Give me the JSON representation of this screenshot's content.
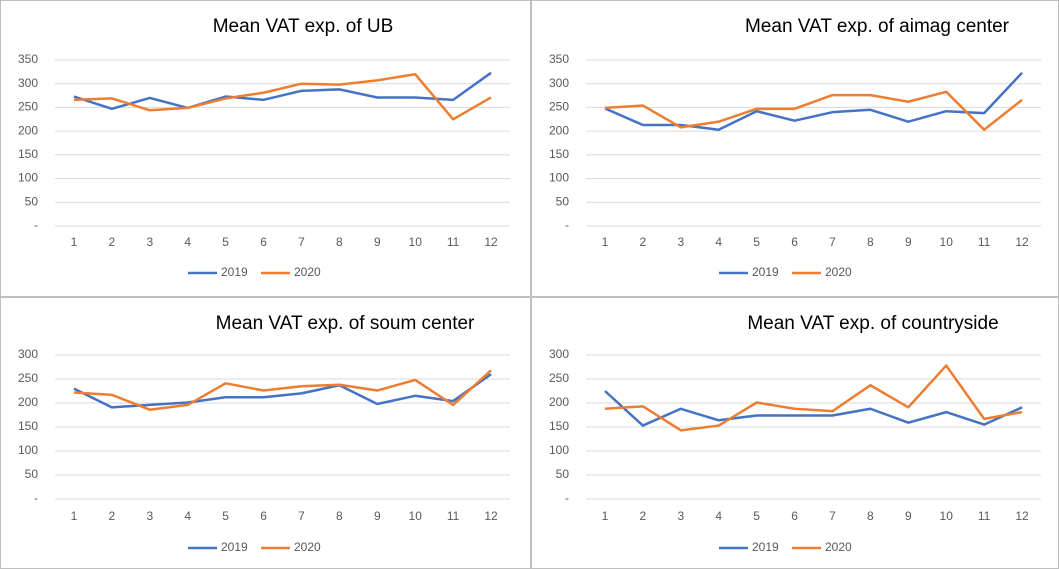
{
  "chart_data": [
    {
      "type": "line",
      "title": "Mean VAT exp. of UB",
      "categories": [
        "1",
        "2",
        "3",
        "4",
        "5",
        "6",
        "7",
        "8",
        "9",
        "10",
        "11",
        "12"
      ],
      "series": [
        {
          "name": "2019",
          "color": "#4472c4",
          "values": [
            273,
            247,
            270,
            249,
            273,
            266,
            285,
            288,
            271,
            271,
            266,
            323
          ]
        },
        {
          "name": "2020",
          "color": "#ed7d31",
          "values": [
            266,
            269,
            244,
            249,
            269,
            281,
            300,
            298,
            307,
            320,
            225,
            271
          ]
        }
      ],
      "ylim": [
        0,
        350
      ],
      "yticks": [
        {
          "value": 0,
          "label": "-"
        },
        50,
        100,
        150,
        200,
        250,
        300,
        350
      ],
      "grid": true,
      "legend": "bottom"
    },
    {
      "type": "line",
      "title": "Mean VAT exp. of aimag center",
      "categories": [
        "1",
        "2",
        "3",
        "4",
        "5",
        "6",
        "7",
        "8",
        "9",
        "10",
        "11",
        "12"
      ],
      "series": [
        {
          "name": "2019",
          "color": "#4472c4",
          "values": [
            248,
            213,
            213,
            203,
            242,
            222,
            240,
            245,
            220,
            242,
            238,
            323
          ]
        },
        {
          "name": "2020",
          "color": "#ed7d31",
          "values": [
            249,
            254,
            208,
            220,
            247,
            247,
            276,
            276,
            262,
            283,
            203,
            266
          ]
        }
      ],
      "ylim": [
        0,
        350
      ],
      "yticks": [
        {
          "value": 0,
          "label": "-"
        },
        50,
        100,
        150,
        200,
        250,
        300,
        350
      ],
      "grid": true,
      "legend": "bottom"
    },
    {
      "type": "line",
      "title": "Mean VAT exp. of soum center",
      "categories": [
        "1",
        "2",
        "3",
        "4",
        "5",
        "6",
        "7",
        "8",
        "9",
        "10",
        "11",
        "12"
      ],
      "series": [
        {
          "name": "2019",
          "color": "#4472c4",
          "values": [
            230,
            191,
            196,
            201,
            212,
            212,
            220,
            237,
            198,
            215,
            204,
            260
          ]
        },
        {
          "name": "2020",
          "color": "#ed7d31",
          "values": [
            222,
            217,
            186,
            196,
            241,
            226,
            235,
            238,
            226,
            248,
            196,
            268
          ]
        }
      ],
      "ylim": [
        0,
        300
      ],
      "yticks": [
        {
          "value": 0,
          "label": "-"
        },
        50,
        100,
        150,
        200,
        250,
        300
      ],
      "grid": true,
      "legend": "bottom"
    },
    {
      "type": "line",
      "title": "Mean VAT exp. of countryside",
      "categories": [
        "1",
        "2",
        "3",
        "4",
        "5",
        "6",
        "7",
        "8",
        "9",
        "10",
        "11",
        "12"
      ],
      "series": [
        {
          "name": "2019",
          "color": "#4472c4",
          "values": [
            225,
            153,
            188,
            164,
            174,
            174,
            174,
            188,
            159,
            181,
            155,
            191
          ]
        },
        {
          "name": "2020",
          "color": "#ed7d31",
          "values": [
            188,
            193,
            143,
            153,
            201,
            188,
            183,
            237,
            191,
            278,
            167,
            181
          ]
        }
      ],
      "ylim": [
        0,
        300
      ],
      "yticks": [
        {
          "value": 0,
          "label": "-"
        },
        50,
        100,
        150,
        200,
        250,
        300
      ],
      "grid": true,
      "legend": "bottom"
    }
  ]
}
